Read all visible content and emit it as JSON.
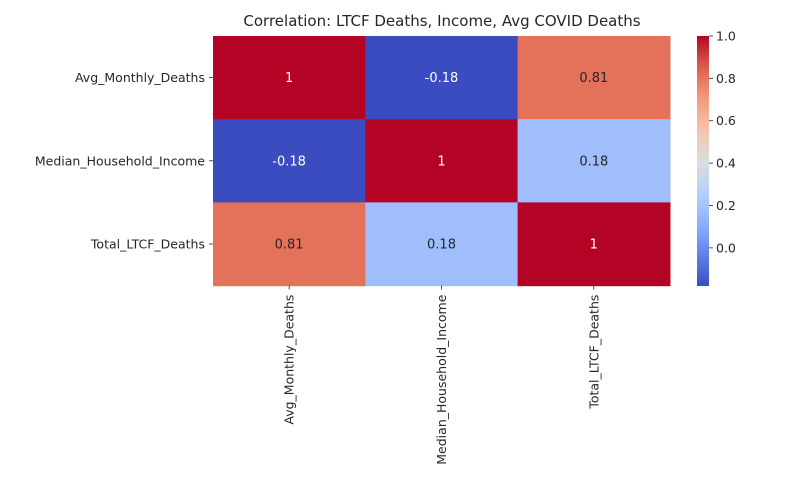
{
  "chart_data": {
    "type": "heatmap",
    "title": "Correlation: LTCF Deaths, Income, Avg COVID Deaths",
    "rows": [
      "Avg_Monthly_Deaths",
      "Median_Household_Income",
      "Total_LTCF_Deaths"
    ],
    "columns": [
      "Avg_Monthly_Deaths",
      "Median_Household_Income",
      "Total_LTCF_Deaths"
    ],
    "values": [
      [
        1.0,
        -0.18,
        0.81
      ],
      [
        -0.18,
        1.0,
        0.18
      ],
      [
        0.81,
        0.18,
        1.0
      ]
    ],
    "annotations": [
      [
        "1",
        "-0.18",
        "0.81"
      ],
      [
        "-0.18",
        "1",
        "0.18"
      ],
      [
        "0.81",
        "0.18",
        "1"
      ]
    ],
    "colormap": "coolwarm",
    "vmin": -0.18,
    "vmax": 1.0,
    "colorbar": {
      "ticks": [
        0.0,
        0.2,
        0.4,
        0.6,
        0.8,
        1.0
      ],
      "tick_labels": [
        "0.0",
        "0.2",
        "0.4",
        "0.6",
        "0.8",
        "1.0"
      ]
    },
    "xlabel": "",
    "ylabel": ""
  }
}
